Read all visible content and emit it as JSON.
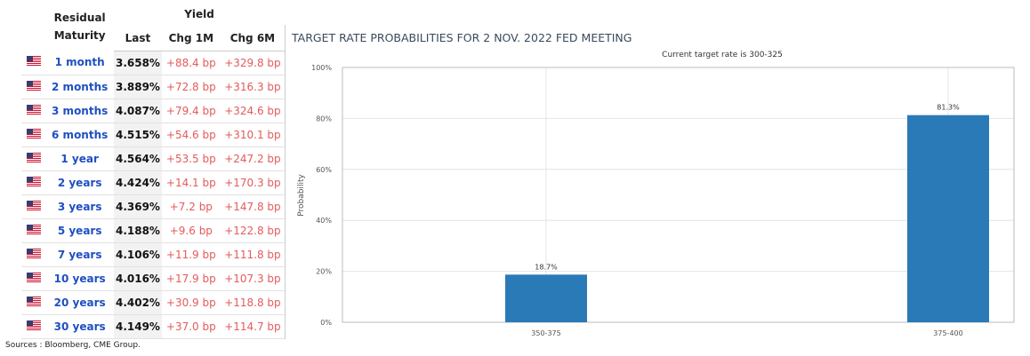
{
  "table": {
    "header": {
      "maturity": "Residual Maturity",
      "yield": "Yield",
      "columns": [
        "Last",
        "Chg 1M",
        "Chg 6M"
      ]
    },
    "rows": [
      [
        "1 month",
        "3.658%",
        "+88.4 bp",
        "+329.8 bp"
      ],
      [
        "2 months",
        "3.889%",
        "+72.8 bp",
        "+316.3 bp"
      ],
      [
        "3 months",
        "4.087%",
        "+79.4 bp",
        "+324.6 bp"
      ],
      [
        "6 months",
        "4.515%",
        "+54.6 bp",
        "+310.1 bp"
      ],
      [
        "1 year",
        "4.564%",
        "+53.5 bp",
        "+247.2 bp"
      ],
      [
        "2 years",
        "4.424%",
        "+14.1 bp",
        "+170.3 bp"
      ],
      [
        "3 years",
        "4.369%",
        "+7.2 bp",
        "+147.8 bp"
      ],
      [
        "5 years",
        "4.188%",
        "+9.6 bp",
        "+122.8 bp"
      ],
      [
        "7 years",
        "4.106%",
        "+11.9 bp",
        "+111.8 bp"
      ],
      [
        "10 years",
        "4.016%",
        "+17.9 bp",
        "+107.3 bp"
      ],
      [
        "20 years",
        "4.402%",
        "+30.9 bp",
        "+118.8 bp"
      ],
      [
        "30 years",
        "4.149%",
        "+37.0 bp",
        "+114.7 bp"
      ]
    ]
  },
  "source": "Sources : Bloomberg, CME Group.",
  "chart_data": {
    "type": "bar",
    "title": "TARGET RATE PROBABILITIES FOR 2 NOV. 2022 FED MEETING",
    "subtitle": "Current target rate is 300-325",
    "y_label": "Probability",
    "categories": [
      "350-375",
      "375-400"
    ],
    "values": [
      18.7,
      81.3
    ],
    "value_labels": [
      "18.7%",
      "81.3%"
    ],
    "color": "#2a7ab8",
    "ylim": [
      0,
      100
    ],
    "yticks": [
      {
        "value": 0,
        "label": "0%"
      },
      {
        "value": 20,
        "label": "20%"
      },
      {
        "value": 40,
        "label": "40%"
      },
      {
        "value": 60,
        "label": "60%"
      },
      {
        "value": 80,
        "label": "80%"
      },
      {
        "value": 100,
        "label": "100%"
      }
    ],
    "grid": true
  }
}
